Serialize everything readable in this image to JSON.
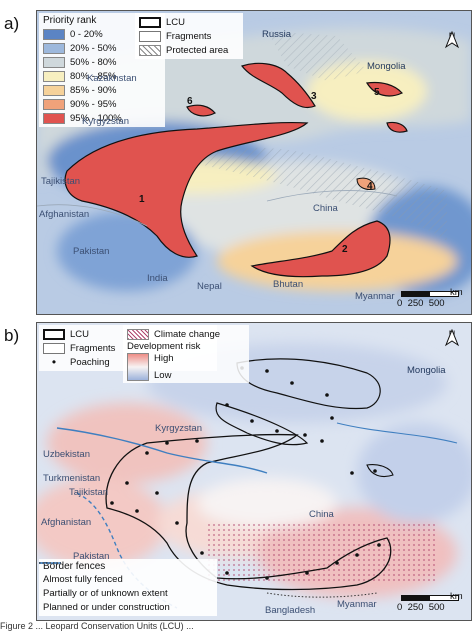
{
  "panels": {
    "a": {
      "label": "a)",
      "legend_title": "Priority rank",
      "ranks": [
        {
          "label": "0 - 20%",
          "color": "#5b84c4"
        },
        {
          "label": "20% - 50%",
          "color": "#9db8dc"
        },
        {
          "label": "50% - 80%",
          "color": "#cfd8dc"
        },
        {
          "label": "80% - 85%",
          "color": "#f7efc0"
        },
        {
          "label": "85% - 90%",
          "color": "#f6d29a"
        },
        {
          "label": "90% - 95%",
          "color": "#f0a27a"
        },
        {
          "label": "95% - 100%",
          "color": "#e0534f"
        }
      ],
      "legend_lcu": "LCU",
      "legend_fragments": "Fragments",
      "legend_protected": "Protected area",
      "places": [
        "Russia",
        "Mongolia",
        "Kazakhstan",
        "Kyrgyzstan",
        "Tajikistan",
        "Afghanistan",
        "Pakistan",
        "India",
        "Nepal",
        "Bhutan",
        "Myanmar",
        "China"
      ],
      "numbers": [
        "1",
        "2",
        "3",
        "4",
        "5",
        "6"
      ],
      "north": "N",
      "scale": {
        "ticks": [
          "0",
          "250",
          "500"
        ],
        "unit": "km"
      }
    },
    "b": {
      "label": "b)",
      "legend_lcu": "LCU",
      "legend_fragments": "Fragments",
      "legend_poaching": "Poaching",
      "legend_climate": "Climate change",
      "legend_dev_title": "Development risk",
      "legend_dev_high": "High",
      "legend_dev_low": "Low",
      "fences_title": "Border fences",
      "fences": [
        {
          "label": "Almost fully fenced",
          "style": "solid",
          "color": "#3f7fc0"
        },
        {
          "label": "Partially or of unknown extent",
          "style": "dashed",
          "color": "#3f7fc0"
        },
        {
          "label": "Planned or under construction",
          "style": "dotted",
          "color": "#333333"
        }
      ],
      "places": [
        "Mongolia",
        "Kyrgyzstan",
        "Uzbekistan",
        "Turkmenistan",
        "Tajikistan",
        "Afghanistan",
        "Pakistan",
        "China",
        "Bangladesh",
        "Myanmar"
      ],
      "north": "N",
      "scale": {
        "ticks": [
          "0",
          "250",
          "500"
        ],
        "unit": "km"
      }
    }
  },
  "caption_fragment": "Figure 2 ... Leopard Conservation Units (LCU) ..."
}
